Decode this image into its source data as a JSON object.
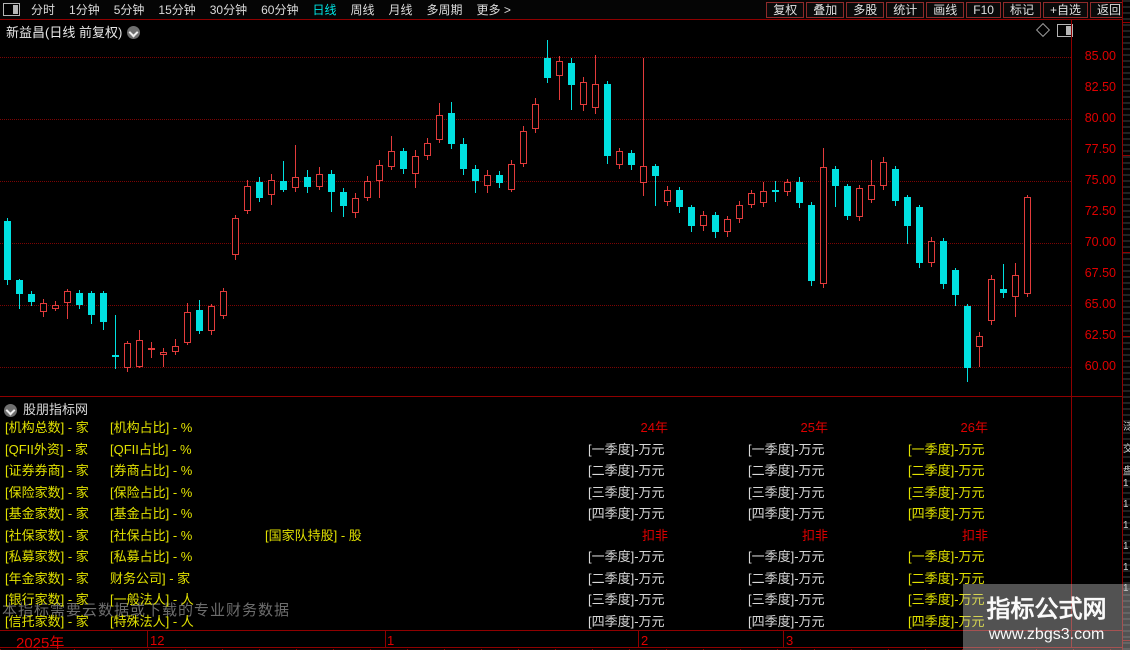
{
  "toolbar": {
    "left_items": [
      "分时",
      "1分钟",
      "5分钟",
      "15分钟",
      "30分钟",
      "60分钟",
      "日线",
      "周线",
      "月线",
      "多周期",
      "更多 >"
    ],
    "active_item": "日线",
    "right_buttons": [
      "复权",
      "叠加",
      "多股",
      "统计",
      "画线",
      "F10",
      "标记",
      "+自选",
      "返回"
    ]
  },
  "title": {
    "text": "新益昌(日线 前复权)"
  },
  "chart_data": {
    "type": "candlestick",
    "symbol": "新益昌",
    "period": "日线 前复权",
    "ylim": [
      58.5,
      86.5
    ],
    "y_ticks": [
      85.0,
      82.5,
      80.0,
      77.5,
      75.0,
      72.5,
      70.0,
      67.5,
      65.0,
      62.5,
      60.0
    ],
    "grid_prices": [
      85,
      80,
      75,
      70,
      65,
      60
    ],
    "up_color": "#e23b3b",
    "down_color": "#00e0e0",
    "x_axis": {
      "labels": [
        {
          "text": "2025年",
          "x": 16,
          "big": true
        },
        {
          "text": "12",
          "x": 150
        },
        {
          "text": "1",
          "x": 387
        },
        {
          "text": "2",
          "x": 641
        },
        {
          "text": "3",
          "x": 786
        }
      ],
      "tick_x": [
        147,
        385,
        638,
        783
      ]
    },
    "candles": [
      [
        71.8,
        67.0,
        72.0,
        66.6
      ],
      [
        67.0,
        65.9,
        67.1,
        64.7
      ],
      [
        65.9,
        65.2,
        66.1,
        64.9
      ],
      [
        64.4,
        65.2,
        65.5,
        64.0
      ],
      [
        64.7,
        65.0,
        65.3,
        64.5
      ],
      [
        65.2,
        66.1,
        66.3,
        63.9
      ],
      [
        66.0,
        65.0,
        66.2,
        64.7
      ],
      [
        66.0,
        64.2,
        66.1,
        63.5
      ],
      [
        66.0,
        63.6,
        66.1,
        63.0
      ],
      [
        61.0,
        60.9,
        64.2,
        59.8
      ],
      [
        59.9,
        61.9,
        62.1,
        59.6
      ],
      [
        60.0,
        62.2,
        63.0,
        59.9
      ],
      [
        61.4,
        61.5,
        62.0,
        60.7
      ],
      [
        61.0,
        61.2,
        61.5,
        60.0
      ],
      [
        61.2,
        61.7,
        62.3,
        61.0
      ],
      [
        61.9,
        64.4,
        65.2,
        61.8
      ],
      [
        64.6,
        62.9,
        65.4,
        62.7
      ],
      [
        62.9,
        64.9,
        65.1,
        62.6
      ],
      [
        64.1,
        66.1,
        66.4,
        63.9
      ],
      [
        69.0,
        72.0,
        72.3,
        68.6
      ],
      [
        72.6,
        74.6,
        75.1,
        72.3
      ],
      [
        74.9,
        73.6,
        75.3,
        73.3
      ],
      [
        73.9,
        75.1,
        75.6,
        73.1
      ],
      [
        75.0,
        74.3,
        76.6,
        74.1
      ],
      [
        74.4,
        75.3,
        77.9,
        74.1
      ],
      [
        75.3,
        74.5,
        75.9,
        74.0
      ],
      [
        74.5,
        75.6,
        76.1,
        74.3
      ],
      [
        75.6,
        74.1,
        75.9,
        72.5
      ],
      [
        74.1,
        73.0,
        74.4,
        72.1
      ],
      [
        72.4,
        73.6,
        74.0,
        72.0
      ],
      [
        73.6,
        75.0,
        75.4,
        73.4
      ],
      [
        75.0,
        76.3,
        76.7,
        73.6
      ],
      [
        76.1,
        77.4,
        78.6,
        75.9
      ],
      [
        77.4,
        76.0,
        77.7,
        75.6
      ],
      [
        75.6,
        77.0,
        77.5,
        74.4
      ],
      [
        77.0,
        78.1,
        78.5,
        76.7
      ],
      [
        78.3,
        80.3,
        81.3,
        78.1
      ],
      [
        80.5,
        78.0,
        81.4,
        77.6
      ],
      [
        78.0,
        76.0,
        78.5,
        75.5
      ],
      [
        76.0,
        75.0,
        76.3,
        74.0
      ],
      [
        74.6,
        75.5,
        75.9,
        74.0
      ],
      [
        75.5,
        74.8,
        75.8,
        74.4
      ],
      [
        74.3,
        76.4,
        76.7,
        74.1
      ],
      [
        76.4,
        79.0,
        79.4,
        76.1
      ],
      [
        79.2,
        81.2,
        81.7,
        78.9
      ],
      [
        84.9,
        83.3,
        86.4,
        82.9
      ],
      [
        83.5,
        84.7,
        85.1,
        81.5
      ],
      [
        84.5,
        82.7,
        84.9,
        80.7
      ],
      [
        81.1,
        83.0,
        83.4,
        80.6
      ],
      [
        80.9,
        82.8,
        85.2,
        80.4
      ],
      [
        82.8,
        77.0,
        83.1,
        76.4
      ],
      [
        76.3,
        77.4,
        77.7,
        76.0
      ],
      [
        77.3,
        76.3,
        77.5,
        75.9
      ],
      [
        74.8,
        76.2,
        84.9,
        73.8
      ],
      [
        76.2,
        75.4,
        76.4,
        73.0
      ],
      [
        73.3,
        74.3,
        74.6,
        73.0
      ],
      [
        74.3,
        72.9,
        74.5,
        72.4
      ],
      [
        72.9,
        71.4,
        73.1,
        70.9
      ],
      [
        71.4,
        72.3,
        72.6,
        71.0
      ],
      [
        72.3,
        70.9,
        72.5,
        70.4
      ],
      [
        70.9,
        71.9,
        72.2,
        70.5
      ],
      [
        71.9,
        73.1,
        73.4,
        71.6
      ],
      [
        73.1,
        74.0,
        74.3,
        72.8
      ],
      [
        73.2,
        74.2,
        74.9,
        72.9
      ],
      [
        74.3,
        74.1,
        75.0,
        73.3
      ],
      [
        74.1,
        74.9,
        75.2,
        73.8
      ],
      [
        74.9,
        73.2,
        75.3,
        72.8
      ],
      [
        73.1,
        66.9,
        73.3,
        66.5
      ],
      [
        66.7,
        76.1,
        77.7,
        66.4
      ],
      [
        76.0,
        74.6,
        76.2,
        72.9
      ],
      [
        74.6,
        72.2,
        74.8,
        71.9
      ],
      [
        72.1,
        74.4,
        74.7,
        71.8
      ],
      [
        73.5,
        74.7,
        76.7,
        73.2
      ],
      [
        74.6,
        76.5,
        76.9,
        74.3
      ],
      [
        76.0,
        73.4,
        76.2,
        73.0
      ],
      [
        73.7,
        71.4,
        73.9,
        69.9
      ],
      [
        72.9,
        68.4,
        73.1,
        68.0
      ],
      [
        68.4,
        70.2,
        70.5,
        68.1
      ],
      [
        70.2,
        66.7,
        70.4,
        66.3
      ],
      [
        67.8,
        65.8,
        68.0,
        64.9
      ],
      [
        64.9,
        59.9,
        65.1,
        58.8
      ],
      [
        61.6,
        62.5,
        62.8,
        60.0
      ],
      [
        63.7,
        67.1,
        67.4,
        63.4
      ],
      [
        66.3,
        66.0,
        68.3,
        65.6
      ],
      [
        65.6,
        67.4,
        68.4,
        64.0
      ],
      [
        65.9,
        73.7,
        73.9,
        65.6
      ]
    ]
  },
  "panel": {
    "header": "股朋指标网",
    "col1": [
      "[机构总数] - 家",
      "[QFII外资] - 家",
      "[证券券商] - 家",
      "[保险家数] - 家",
      "[基金家数] - 家",
      "[社保家数] - 家",
      "[私募家数] - 家",
      "[年金家数] - 家",
      "[银行家数] - 家",
      "[信托家数] - 家"
    ],
    "col2": [
      "[机构占比] - %",
      "[QFII占比] - %",
      "[券商占比] - %",
      "[保险占比] - %",
      "[基金占比] - %",
      "[社保占比] - %",
      "[私募占比] - %",
      "财务公司] - 家",
      "[一般法人] - 人",
      "[特殊法人] - 人"
    ],
    "mid_label": "[国家队持股] - 股",
    "quarters": [
      "[一季度]-万元",
      "[二季度]-万元",
      "[三季度]-万元",
      "[四季度]-万元"
    ],
    "deduct_label": "扣非",
    "years": [
      {
        "label": "24年",
        "text_color": "#d8d8d8"
      },
      {
        "label": "25年",
        "text_color": "#d8d8d8"
      },
      {
        "label": "26年",
        "text_color": "#e1e100"
      }
    ]
  },
  "edge_strip": {
    "chars": [
      "泛",
      "交",
      "盘"
    ],
    "numbers": [
      "1",
      "1",
      "1",
      "1",
      "1",
      "1"
    ]
  },
  "watermarks": {
    "data_notice": "本指标需要云数据或下载的专业财务数据",
    "site_name": "指标公式网",
    "site_url": "www.zbgs3.com"
  },
  "colors": {
    "up": "#e23b3b",
    "down": "#00e0e0",
    "yellow": "#e1e100",
    "red_label": "#dd0000",
    "white_text": "#d8d8d8",
    "axis_red": "#e00000",
    "accent_active": "#00e5e5"
  }
}
